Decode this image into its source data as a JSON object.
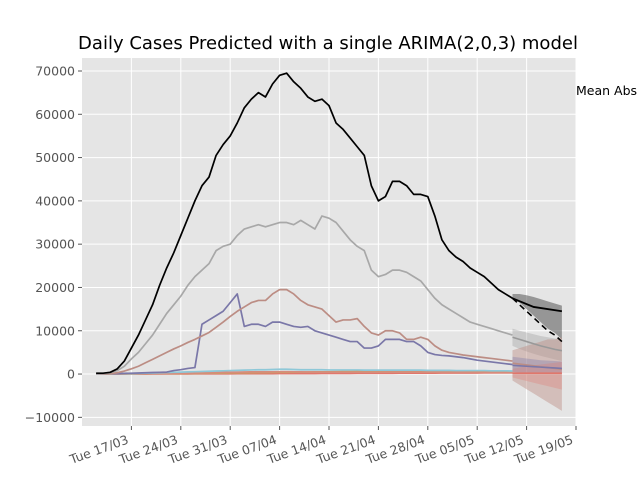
{
  "chart_data": {
    "type": "line",
    "title": "Daily Cases Predicted with a single ARIMA(2,0,3) model",
    "annotation": "Mean Abs",
    "xlabel": "",
    "ylabel": "",
    "x_start": "2020-03-12",
    "x_range": [
      "2020-03-10",
      "2020-05-19"
    ],
    "ylim": [
      -12000,
      73000
    ],
    "x_ticks": [
      {
        "date": "2020-03-17",
        "label": "Tue 17/03"
      },
      {
        "date": "2020-03-24",
        "label": "Tue 24/03"
      },
      {
        "date": "2020-03-31",
        "label": "Tue 31/03"
      },
      {
        "date": "2020-04-07",
        "label": "Tue 07/04"
      },
      {
        "date": "2020-04-14",
        "label": "Tue 14/04"
      },
      {
        "date": "2020-04-21",
        "label": "Tue 21/04"
      },
      {
        "date": "2020-04-28",
        "label": "Tue 28/04"
      },
      {
        "date": "2020-05-05",
        "label": "Tue 05/05"
      },
      {
        "date": "2020-05-12",
        "label": "Tue 12/05"
      },
      {
        "date": "2020-05-19",
        "label": "Tue 19/05"
      }
    ],
    "y_ticks": [
      {
        "value": -10000,
        "label": "−10000"
      },
      {
        "value": 0,
        "label": "0"
      },
      {
        "value": 10000,
        "label": "10000"
      },
      {
        "value": 20000,
        "label": "20000"
      },
      {
        "value": 30000,
        "label": "30000"
      },
      {
        "value": 40000,
        "label": "40000"
      },
      {
        "value": 50000,
        "label": "50000"
      },
      {
        "value": 60000,
        "label": "60000"
      },
      {
        "value": 70000,
        "label": "70000"
      }
    ],
    "grid": true,
    "series": [
      {
        "color": "#000000",
        "values": [
          200,
          200,
          400,
          1200,
          3000,
          6000,
          9000,
          12500,
          16000,
          20500,
          24500,
          28000,
          32000,
          36000,
          40000,
          43500,
          45500,
          50500,
          53000,
          55000,
          58000,
          61500,
          63500,
          65000,
          64000,
          67000,
          69000,
          69500,
          67500,
          66000,
          64000,
          63000,
          63500,
          62000,
          58000,
          56500,
          54500,
          52500,
          50500,
          43500,
          40000,
          41000,
          44500,
          44500,
          43500,
          41500,
          41500,
          41000,
          36500,
          31000,
          28500,
          27000,
          26000,
          24500,
          23500,
          22500,
          21000,
          19500,
          18500,
          17500
        ]
      },
      {
        "color": "#a8a8a8",
        "values": [
          100,
          150,
          300,
          800,
          1800,
          3500,
          5000,
          7000,
          9000,
          11500,
          14000,
          16000,
          18000,
          20500,
          22500,
          24000,
          25500,
          28500,
          29500,
          30000,
          32000,
          33500,
          34000,
          34500,
          34000,
          34500,
          35000,
          35000,
          34500,
          35500,
          34500,
          33500,
          36500,
          36000,
          35000,
          33000,
          31000,
          29500,
          28500,
          24000,
          22500,
          23000,
          24000,
          24000,
          23500,
          22500,
          21500,
          19500,
          17500,
          16000,
          15000,
          14000,
          13000,
          12000,
          11500,
          11000,
          10500,
          10000,
          9500,
          9000
        ]
      },
      {
        "color": "#bc8d84",
        "values": [
          50,
          60,
          100,
          300,
          700,
          1200,
          1800,
          2600,
          3400,
          4200,
          5000,
          5800,
          6500,
          7300,
          8000,
          8800,
          9600,
          10800,
          12000,
          13300,
          14500,
          15500,
          16500,
          17000,
          17000,
          18500,
          19500,
          19500,
          18500,
          17000,
          16000,
          15500,
          15000,
          13500,
          12000,
          12500,
          12500,
          12800,
          11000,
          9500,
          9000,
          10000,
          10000,
          9500,
          8000,
          8000,
          8500,
          8000,
          6500,
          5500,
          5000,
          4700,
          4400,
          4200,
          4000,
          3800,
          3600,
          3400,
          3200,
          3000
        ]
      },
      {
        "color": "#7a77a8",
        "values": [
          50,
          60,
          80,
          100,
          150,
          200,
          250,
          300,
          350,
          400,
          450,
          800,
          1000,
          1300,
          1500,
          11500,
          12500,
          13500,
          14500,
          16500,
          18500,
          11000,
          11500,
          11500,
          11000,
          12000,
          12000,
          11500,
          11000,
          10800,
          11000,
          10000,
          9500,
          9000,
          8500,
          8000,
          7500,
          7500,
          6000,
          6000,
          6500,
          8000,
          8000,
          8000,
          7500,
          7500,
          6500,
          5000,
          4500,
          4300,
          4200,
          4000,
          3800,
          3500,
          3200,
          3000,
          2800,
          2600,
          2400,
          2200
        ]
      },
      {
        "color": "#8ec8d8",
        "values": [
          10,
          20,
          40,
          60,
          80,
          100,
          150,
          200,
          250,
          300,
          350,
          400,
          450,
          500,
          550,
          600,
          650,
          700,
          750,
          800,
          850,
          900,
          950,
          1000,
          1000,
          1050,
          1100,
          1100,
          1050,
          1000,
          1000,
          1000,
          1000,
          950,
          950,
          950,
          950,
          950,
          900,
          900,
          900,
          900,
          900,
          900,
          900,
          900,
          900,
          850,
          850,
          850,
          850,
          800,
          800,
          800,
          800,
          800,
          750,
          750,
          750,
          700
        ]
      },
      {
        "color": "#d68c7c",
        "values": [
          0,
          0,
          0,
          10,
          20,
          30,
          40,
          60,
          80,
          100,
          120,
          150,
          180,
          200,
          230,
          260,
          300,
          350,
          400,
          420,
          450,
          480,
          500,
          520,
          500,
          520,
          550,
          550,
          520,
          500,
          480,
          470,
          460,
          450,
          440,
          430,
          430,
          430,
          420,
          420,
          430,
          440,
          440,
          450,
          450,
          450,
          440,
          430,
          420,
          410,
          400,
          390,
          380,
          370,
          360,
          350,
          340,
          330,
          320,
          310
        ]
      },
      {
        "color": "#c9a064",
        "values": [
          0,
          0,
          0,
          0,
          10,
          20,
          30,
          40,
          50,
          60,
          80,
          100,
          120,
          140,
          160,
          180,
          200,
          220,
          240,
          260,
          280,
          300,
          320,
          340,
          360,
          380,
          400,
          420,
          440,
          460,
          480,
          500,
          520,
          540,
          560,
          580,
          600,
          620,
          640,
          660,
          680,
          700,
          720,
          720,
          720,
          720,
          700,
          680,
          660,
          640,
          620,
          600,
          580,
          560,
          540,
          520,
          500,
          480,
          460,
          440
        ]
      },
      {
        "color": "#e0776c",
        "values": [
          0,
          0,
          0,
          0,
          0,
          5,
          10,
          15,
          20,
          25,
          30,
          35,
          40,
          45,
          50,
          55,
          60,
          65,
          70,
          75,
          80,
          85,
          90,
          95,
          100,
          105,
          110,
          115,
          120,
          125,
          130,
          135,
          140,
          145,
          150,
          155,
          160,
          165,
          170,
          175,
          180,
          185,
          190,
          195,
          200,
          205,
          210,
          215,
          220,
          225,
          230,
          235,
          240,
          245,
          250,
          255,
          260,
          265,
          270,
          275
        ]
      }
    ],
    "forecast": {
      "x_days": [
        59,
        60,
        61,
        62,
        63,
        64,
        65,
        66
      ],
      "actual_tail": [
        {
          "day": 59,
          "value": 17500
        },
        {
          "day": 62,
          "value": 15500
        },
        {
          "day": 66,
          "value": 14500
        }
      ],
      "bands": [
        {
          "color": "#555555",
          "lower": [
            17500,
            16500,
            15000,
            13500,
            12000,
            10500,
            9500,
            8000
          ],
          "upper": [
            18500,
            18500,
            18200,
            17800,
            17300,
            16800,
            16300,
            15800
          ],
          "mid": [
            17500,
            16000,
            14500,
            13000,
            11500,
            10000,
            9000,
            7500
          ],
          "opacity": 0.55
        },
        {
          "color": "#999999",
          "lower": [
            6500,
            5800,
            5200,
            4700,
            4200,
            3800,
            3400,
            3000
          ],
          "upper": [
            10500,
            10000,
            9600,
            9200,
            8800,
            8500,
            8200,
            8000
          ],
          "mid": [
            8500,
            8000,
            7500,
            7000,
            6500,
            6100,
            5700,
            5400
          ],
          "opacity": 0.35
        },
        {
          "color": "#bc8d84",
          "lower": [
            -1500,
            -2500,
            -3500,
            -4500,
            -5500,
            -6500,
            -7500,
            -8500
          ],
          "upper": [
            5500,
            6000,
            6500,
            7000,
            7500,
            8000,
            8000,
            8500
          ],
          "mid": [
            2500,
            2300,
            2100,
            1900,
            1700,
            1500,
            1300,
            1100
          ],
          "opacity": 0.45
        },
        {
          "color": "#7a77a8",
          "lower": [
            500,
            300,
            100,
            0,
            0,
            0,
            0,
            0
          ],
          "upper": [
            4000,
            3800,
            3600,
            3400,
            3200,
            3100,
            3000,
            2900
          ],
          "mid": [
            2000,
            1900,
            1800,
            1700,
            1600,
            1500,
            1400,
            1300
          ],
          "opacity": 0.35
        },
        {
          "color": "#e0776c",
          "lower": [
            -800,
            -1200,
            -1600,
            -2000,
            -2400,
            -2800,
            -3200,
            -3600
          ],
          "upper": [
            1200,
            1500,
            1800,
            2000,
            2200,
            2400,
            2600,
            2800
          ],
          "mid": [
            200,
            200,
            200,
            200,
            200,
            200,
            200,
            200
          ],
          "opacity": 0.3
        }
      ]
    }
  }
}
